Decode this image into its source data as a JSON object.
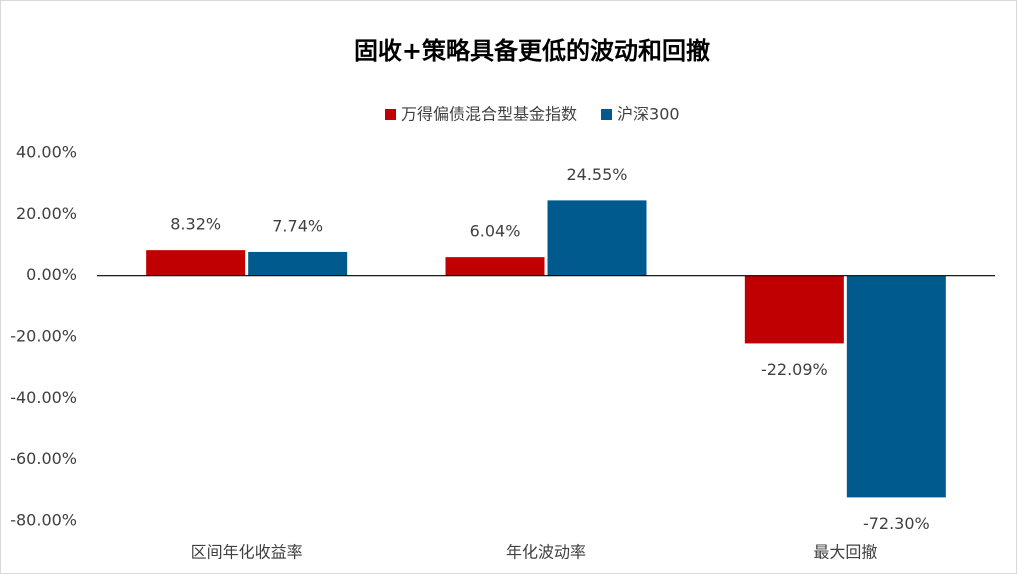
{
  "chart_data": {
    "type": "bar",
    "title": "固收+策略具备更低的波动和回撤",
    "categories": [
      "区间年化收益率",
      "年化波动率",
      "最大回撤"
    ],
    "series": [
      {
        "name": "万得偏债混合型基金指数",
        "color": "#c00000",
        "values": [
          8.32,
          6.04,
          -22.09
        ],
        "value_labels": [
          "8.32%",
          "6.04%",
          "-22.09%"
        ]
      },
      {
        "name": "沪深300",
        "color": "#005a8e",
        "values": [
          7.74,
          24.55,
          -72.3
        ],
        "value_labels": [
          "7.74%",
          "24.55%",
          "-72.30%"
        ]
      }
    ],
    "ylim": [
      -80,
      40
    ],
    "yticks": [
      {
        "value": 40,
        "label": "40.00%"
      },
      {
        "value": 20,
        "label": "20.00%"
      },
      {
        "value": 0,
        "label": "0.00%"
      },
      {
        "value": -20,
        "label": "-20.00%"
      },
      {
        "value": -40,
        "label": "-40.00%"
      },
      {
        "value": -60,
        "label": "-60.00%"
      },
      {
        "value": -80,
        "label": "-80.00%"
      }
    ],
    "grid": false,
    "legend": "top"
  }
}
